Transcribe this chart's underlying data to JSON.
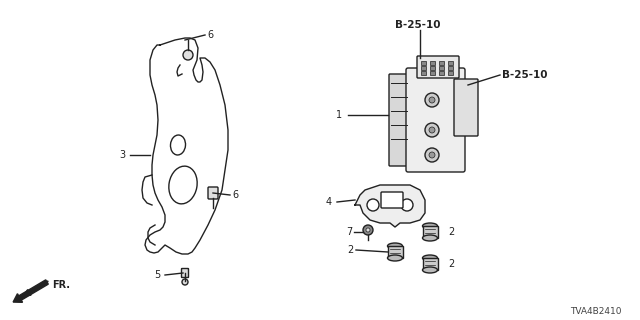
{
  "bg_color": "#ffffff",
  "line_color": "#222222",
  "title_code": "TVA4B2410",
  "labels": {
    "b25_10_top": "B-25-10",
    "b25_10_right": "B-25-10",
    "num1": "1",
    "num2a": "2",
    "num2b": "2",
    "num2c": "2",
    "num3": "3",
    "num4": "4",
    "num5": "5",
    "num6a": "6",
    "num6b": "6",
    "num7": "7",
    "fr": "FR."
  }
}
